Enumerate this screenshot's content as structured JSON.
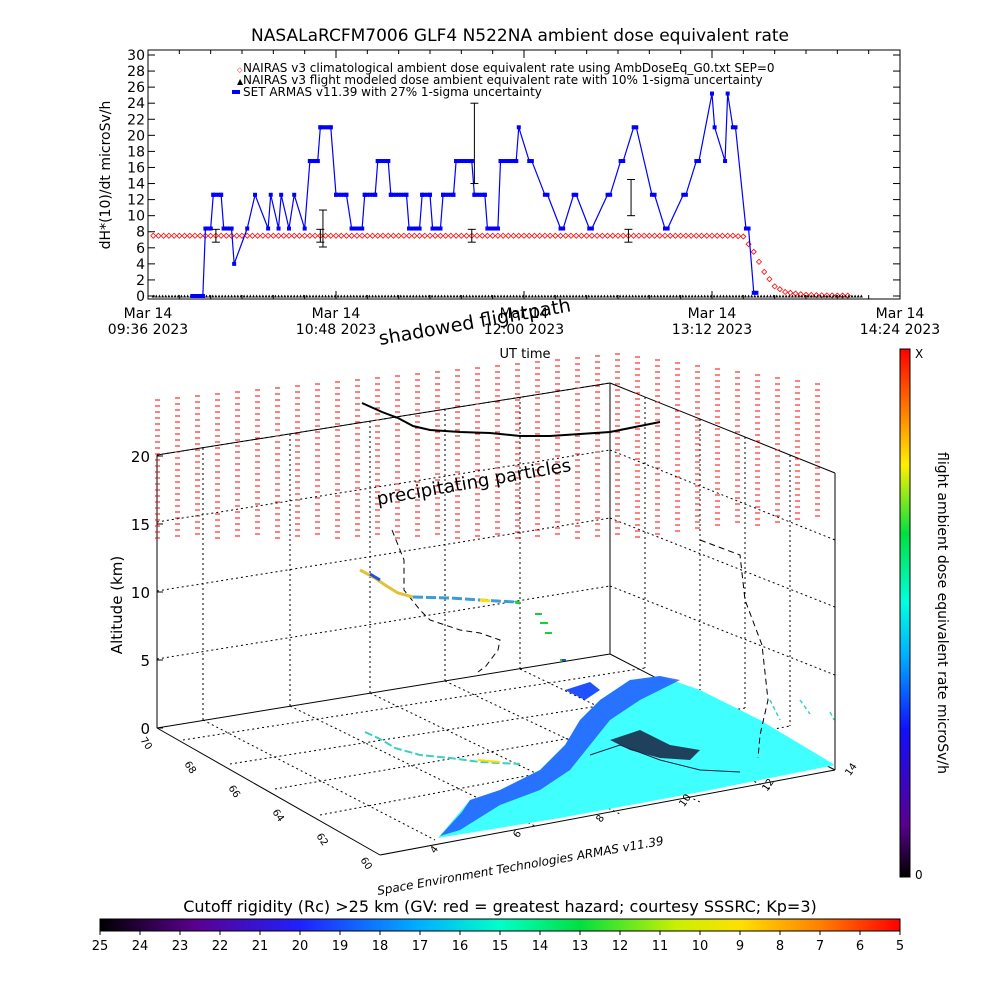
{
  "chart_data": [
    {
      "type": "line",
      "title": "NASALaRCFM7006  GLF4 N522NA ambient dose equivalent rate",
      "ylabel": "dH*(10)/dt microSv/h",
      "xlabel": "UT time",
      "ylim": [
        0,
        30
      ],
      "yticks": [
        0,
        2,
        4,
        6,
        8,
        10,
        12,
        14,
        16,
        18,
        20,
        22,
        24,
        26,
        28,
        30
      ],
      "xticks": [
        {
          "line1": "Mar 14",
          "line2": "09:36 2023"
        },
        {
          "line1": "Mar 14",
          "line2": "10:48 2023"
        },
        {
          "line1": "Mar 14",
          "line2": "12:00 2023"
        },
        {
          "line1": "Mar 14",
          "line2": "13:12 2023"
        },
        {
          "line1": "Mar 14",
          "line2": "14:24 2023"
        }
      ],
      "xlim_minutes_ut": [
        576,
        864
      ],
      "legend": [
        "NAIRAS v3 climatological ambient dose equivalent rate using AmbDoseEq_G0.txt SEP=0",
        "NAIRAS v3 flight modeled dose ambient equivalent rate with 10% 1-sigma uncertainty",
        "SET ARMAS v11.39 with 27% 1-sigma uncertainty"
      ],
      "legend_position": "top",
      "series": [
        {
          "name": "NAIRAS v3 climatological ambient dose equivalent rate using AmbDoseEq_G0.txt SEP=0",
          "color": "#ff0000",
          "x_minutes_ut": [
            578,
            604,
            640,
            680,
            720,
            760,
            790,
            800,
            804,
            808,
            812,
            816,
            820,
            824,
            828,
            832,
            836,
            840,
            844
          ],
          "values": [
            7.5,
            7.5,
            7.5,
            7.5,
            7.5,
            7.5,
            7.5,
            7.5,
            7.4,
            5.5,
            3.0,
            1.2,
            0.5,
            0.3,
            0.15,
            0.1,
            0.08,
            0.06,
            0.05
          ]
        },
        {
          "name": "NAIRAS v3 flight modeled dose ambient equivalent rate with 10% 1-sigma uncertainty",
          "color": "#000000",
          "x_minutes_ut": [
            578,
            850
          ],
          "values": [
            0.0,
            0.0
          ]
        },
        {
          "name": "SET ARMAS v11.39 with 27% 1-sigma uncertainty",
          "color": "#0000ff",
          "x_minutes_ut": [
            593,
            597,
            598,
            600,
            601,
            604,
            605,
            608,
            609,
            614,
            617,
            622,
            623,
            626,
            627,
            630,
            632,
            636,
            638,
            641,
            642,
            646,
            648,
            652,
            654,
            658,
            659,
            663,
            664,
            668,
            669,
            675,
            676,
            680,
            681,
            684,
            685,
            688,
            689,
            693,
            694,
            700,
            701,
            705,
            706,
            710,
            711,
            717,
            718,
            722,
            723,
            728,
            729,
            734,
            735,
            739,
            740,
            745,
            746,
            752,
            753,
            757,
            758,
            762,
            763,
            769,
            770,
            774,
            775,
            781,
            782,
            786,
            787,
            792,
            793,
            797,
            798,
            800,
            801,
            805,
            806,
            808,
            809
          ],
          "values": [
            0,
            0,
            8.4,
            8.4,
            12.6,
            12.6,
            8.4,
            8.4,
            4.0,
            8.4,
            12.6,
            8.4,
            12.6,
            8.4,
            12.6,
            8.4,
            12.6,
            8.4,
            16.8,
            16.8,
            21.0,
            21.0,
            12.6,
            12.6,
            8.4,
            8.4,
            12.6,
            12.6,
            16.8,
            16.8,
            12.6,
            12.6,
            8.4,
            8.4,
            12.6,
            12.6,
            8.4,
            8.4,
            12.6,
            12.6,
            16.8,
            16.8,
            12.6,
            12.6,
            8.4,
            8.4,
            16.8,
            16.8,
            21.0,
            16.8,
            16.8,
            12.6,
            12.6,
            8.4,
            8.4,
            12.6,
            12.6,
            8.4,
            8.4,
            12.6,
            12.6,
            16.8,
            16.8,
            21.0,
            21.0,
            12.6,
            12.6,
            8.4,
            8.4,
            12.6,
            12.6,
            16.8,
            16.8,
            25.2,
            21.0,
            16.8,
            25.2,
            21.0,
            21.0,
            8.4,
            8.4,
            0.4,
            0.4
          ]
        }
      ],
      "error_bars": [
        {
          "x_minutes_ut": 602,
          "value": 7.5,
          "low": 6.7,
          "high": 8.3
        },
        {
          "x_minutes_ut": 642,
          "value": 7.5,
          "low": 6.7,
          "high": 8.3
        },
        {
          "x_minutes_ut": 643,
          "value": 8.4,
          "low": 6.1,
          "high": 10.7
        },
        {
          "x_minutes_ut": 700,
          "value": 7.5,
          "low": 6.7,
          "high": 8.3
        },
        {
          "x_minutes_ut": 701,
          "value": 16.8,
          "low": 14.0,
          "high": 24.0
        },
        {
          "x_minutes_ut": 760,
          "value": 7.5,
          "low": 6.7,
          "high": 8.3
        },
        {
          "x_minutes_ut": 761,
          "value": 12.6,
          "low": 10.0,
          "high": 14.5
        }
      ]
    },
    {
      "type": "scatter",
      "z_label": "Altitude (km)",
      "z_ticks": [
        0,
        5,
        10,
        15,
        20
      ],
      "lat_ticks": [
        70,
        68,
        66,
        64,
        62,
        60
      ],
      "lon_ticks": [
        4,
        6,
        8,
        10,
        12,
        14
      ],
      "annotations": [
        "shadowed flightpath",
        "precipitating particles"
      ],
      "footer": "Space Environment Technologies ARMAS v11.39",
      "colorbar_label": "flight ambient dose equivalent rate microSv/h",
      "colorbar_top": "X",
      "colorbar_bottom": "0",
      "flight_path_color_series": [
        "#e2c234",
        "#3b9cd8",
        "#2050e0",
        "#ffe000",
        "#3ad0c0",
        "#16d040",
        "#1a2040"
      ]
    },
    {
      "type": "heatmap",
      "title": "Cutoff rigidity (Rc) >25 km (GV: red = greatest hazard; courtesy SSSRC; Kp=3)",
      "ticks": [
        "25",
        "24",
        "23",
        "22",
        "21",
        "20",
        "19",
        "18",
        "17",
        "16",
        "15",
        "14",
        "13",
        "12",
        "11",
        "10",
        "9",
        "8",
        "7",
        "6",
        "5"
      ]
    }
  ],
  "colors": {
    "cutoff_gradient": [
      "#000000",
      "#5a0090",
      "#2020ff",
      "#00b0ff",
      "#00ffc8",
      "#00e040",
      "#c8f000",
      "#ffe000",
      "#ff8000",
      "#ff0000"
    ],
    "dose_gradient": [
      "#000000",
      "#5a0090",
      "#1010ff",
      "#00b0ff",
      "#00ffe0",
      "#00e040",
      "#fff000",
      "#ff8000",
      "#ff0000"
    ],
    "map_fill": "#40ffff",
    "map_coast": "#2050ff"
  }
}
